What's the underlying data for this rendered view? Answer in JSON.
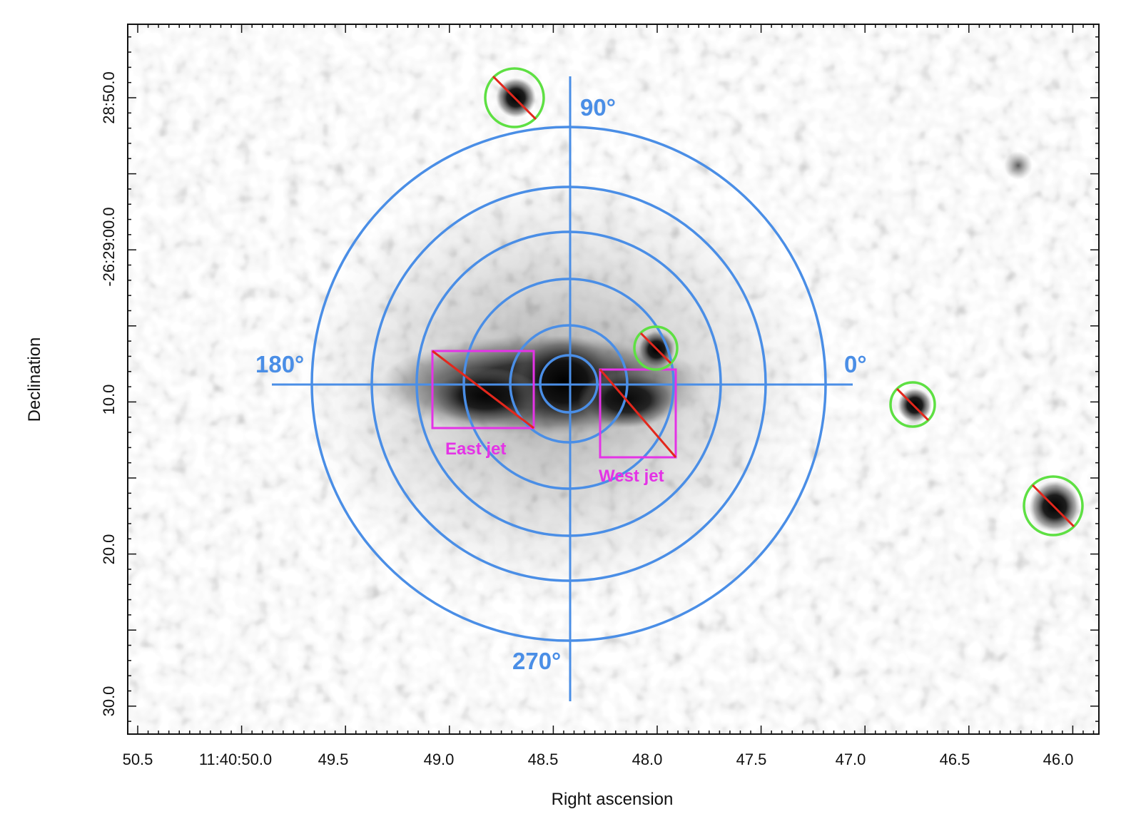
{
  "axes": {
    "x_title": "Right ascension",
    "y_title": "Declination",
    "x_ticks": [
      "50.5",
      "11:40:50.0",
      "49.5",
      "49.0",
      "48.5",
      "48.0",
      "47.5",
      "47.0",
      "46.5",
      "46.0"
    ],
    "y_ticks": [
      "28:50.0",
      "-26:29:00.0",
      "10.0",
      "20.0",
      "30.0"
    ]
  },
  "overlay": {
    "angle_labels": [
      "90°",
      "180°",
      "0°",
      "270°"
    ],
    "regions": [
      "East jet",
      "West jet"
    ]
  },
  "colors": {
    "rings": "#4a8ee6",
    "source_circles": "#5ee043",
    "exclusion_lines": "#e3271c",
    "jet_boxes": "#e433e6",
    "frame": "#111111"
  }
}
